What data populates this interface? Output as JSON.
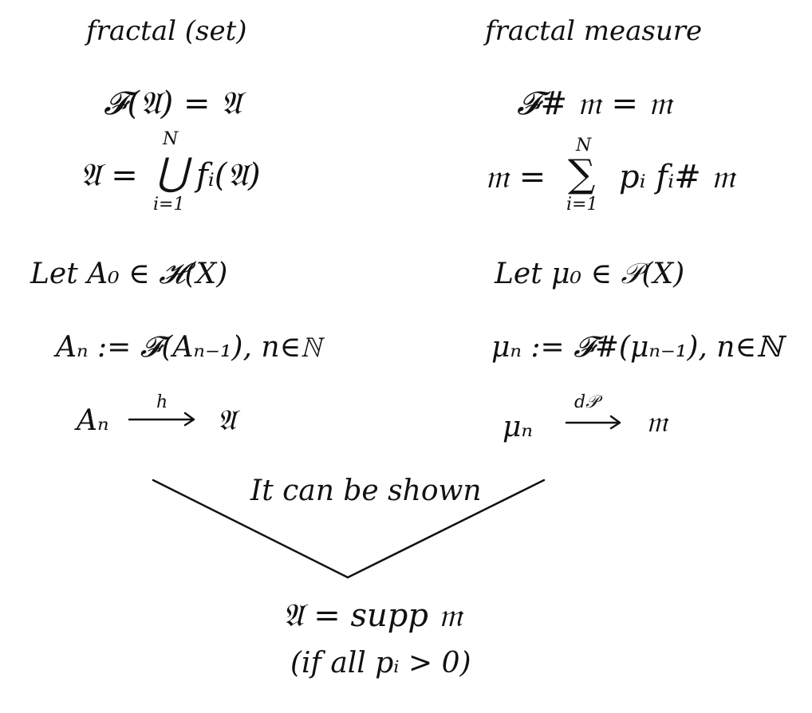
{
  "left": {
    "title": "fractal (set)",
    "fixed_point": "𝓕(𝔄) = 𝔄",
    "union_lhs": "𝔄 =",
    "union_symbol": "⋃",
    "union_upper": "N",
    "union_lower": "i=1",
    "union_rhs": "fᵢ(𝔄)",
    "let": "Let  A₀ ∈ 𝓗(X)",
    "iteration": "Aₙ := 𝓕(Aₙ₋₁), n∈ℕ",
    "limit_lhs": "Aₙ",
    "limit_metric": "h",
    "limit_rhs": "𝔄"
  },
  "right": {
    "title": "fractal measure",
    "fixed_point": "𝓕# 𝔪 = 𝔪",
    "sum_lhs": "𝔪 =",
    "sum_symbol": "∑",
    "sum_upper": "N",
    "sum_lower": "i=1",
    "sum_rhs": "pᵢ fᵢ# 𝔪",
    "let": "Let  μ₀ ∈ 𝒫(X)",
    "iteration": "μₙ := 𝓕#(μₙ₋₁), n∈ℕ",
    "limit_lhs": "μₙ",
    "limit_metric": "d𝒫",
    "limit_rhs": "𝔪"
  },
  "center": {
    "shown_label": "It can be shown",
    "conclusion": "𝔄 = supp 𝔪",
    "condition": "(if all pᵢ > 0)"
  },
  "colors": {
    "ink": "#111111",
    "background": "#ffffff"
  }
}
